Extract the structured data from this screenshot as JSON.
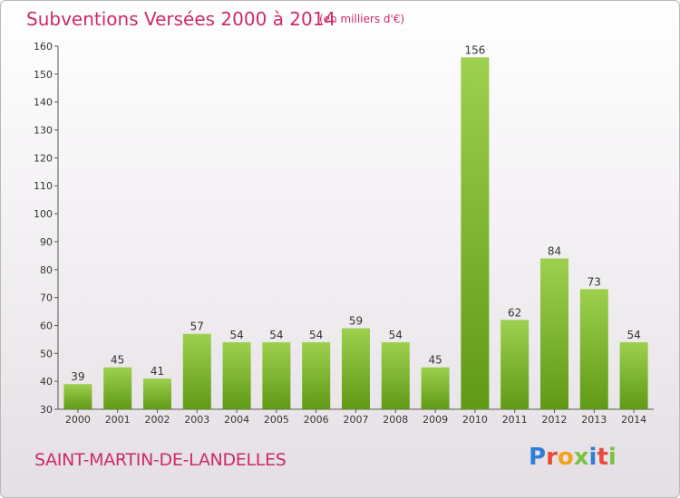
{
  "header": {
    "title": "Subventions Versées 2000 à 2014",
    "unit": "(en milliers d'€)"
  },
  "footer": {
    "commune": "SAINT-MARTIN-DE-LANDELLES",
    "logo_text": "Proxiti"
  },
  "colors": {
    "accent": "#cc2a6b",
    "bar_top": "#9dd04e",
    "bar_bottom": "#5f9a16",
    "axis": "#555555",
    "logo": [
      "#2f7fd6",
      "#e94a3a",
      "#f3a21a",
      "#7cc242",
      "#2f7fd6",
      "#e94a3a",
      "#7cc242"
    ]
  },
  "chart_data": {
    "type": "bar",
    "categories": [
      "2000",
      "2001",
      "2002",
      "2003",
      "2004",
      "2005",
      "2006",
      "2007",
      "2008",
      "2009",
      "2010",
      "2011",
      "2012",
      "2013",
      "2014"
    ],
    "values": [
      39,
      45,
      41,
      57,
      54,
      54,
      54,
      59,
      54,
      45,
      156,
      62,
      84,
      73,
      54
    ],
    "ylim": [
      30,
      160
    ],
    "yticks": [
      30,
      40,
      50,
      60,
      70,
      80,
      90,
      100,
      110,
      120,
      130,
      140,
      150,
      160
    ],
    "data_labels": true,
    "grid": false,
    "legend": "none"
  }
}
